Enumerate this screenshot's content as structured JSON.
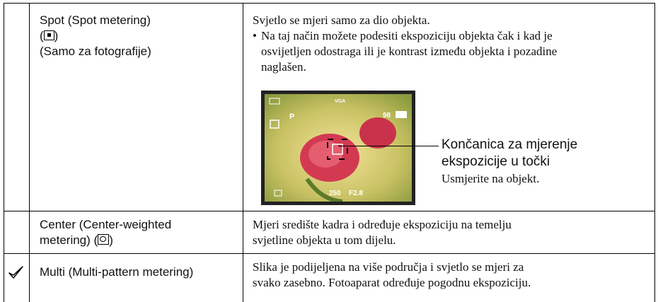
{
  "table": {
    "rows": [
      {
        "name": {
          "line1": "Spot (Spot metering)",
          "open": "(",
          "close": ")",
          "line3": "(Samo za fotografije)"
        },
        "description": {
          "intro": "Svjetlo se mjeri samo za dio objekta.",
          "bullet": "•",
          "lines": [
            "Na taj način možete podesiti ekspoziciju objekta čak i kad je",
            "osvijetljen odostraga ili je kontrast između objekta i pozadine",
            "naglašen."
          ],
          "image": {
            "mode": "P",
            "size": "VGA",
            "count": "98",
            "shutter": "250",
            "aperture": "F2.8",
            "callout": [
              "Končanica za mjerenje",
              "ekspozicije u točki"
            ],
            "hint": "Usmjerite na objekt."
          }
        }
      },
      {
        "name": {
          "line1": "Center (Center-weighted",
          "line2": "metering) (",
          "close": ")"
        },
        "description": {
          "lines": [
            "Mjeri središte kadra i određuje ekspoziciju na temelju",
            "svjetline objekta u tom dijelu."
          ]
        }
      },
      {
        "name": {
          "line1": "Multi (Multi-pattern metering)"
        },
        "description": {
          "lines": [
            "Slika je podijeljena na više područja i svjetlo se mjeri za",
            "svako zasebno. Fotoaparat određuje pogodnu ekspoziciju."
          ]
        }
      }
    ]
  }
}
